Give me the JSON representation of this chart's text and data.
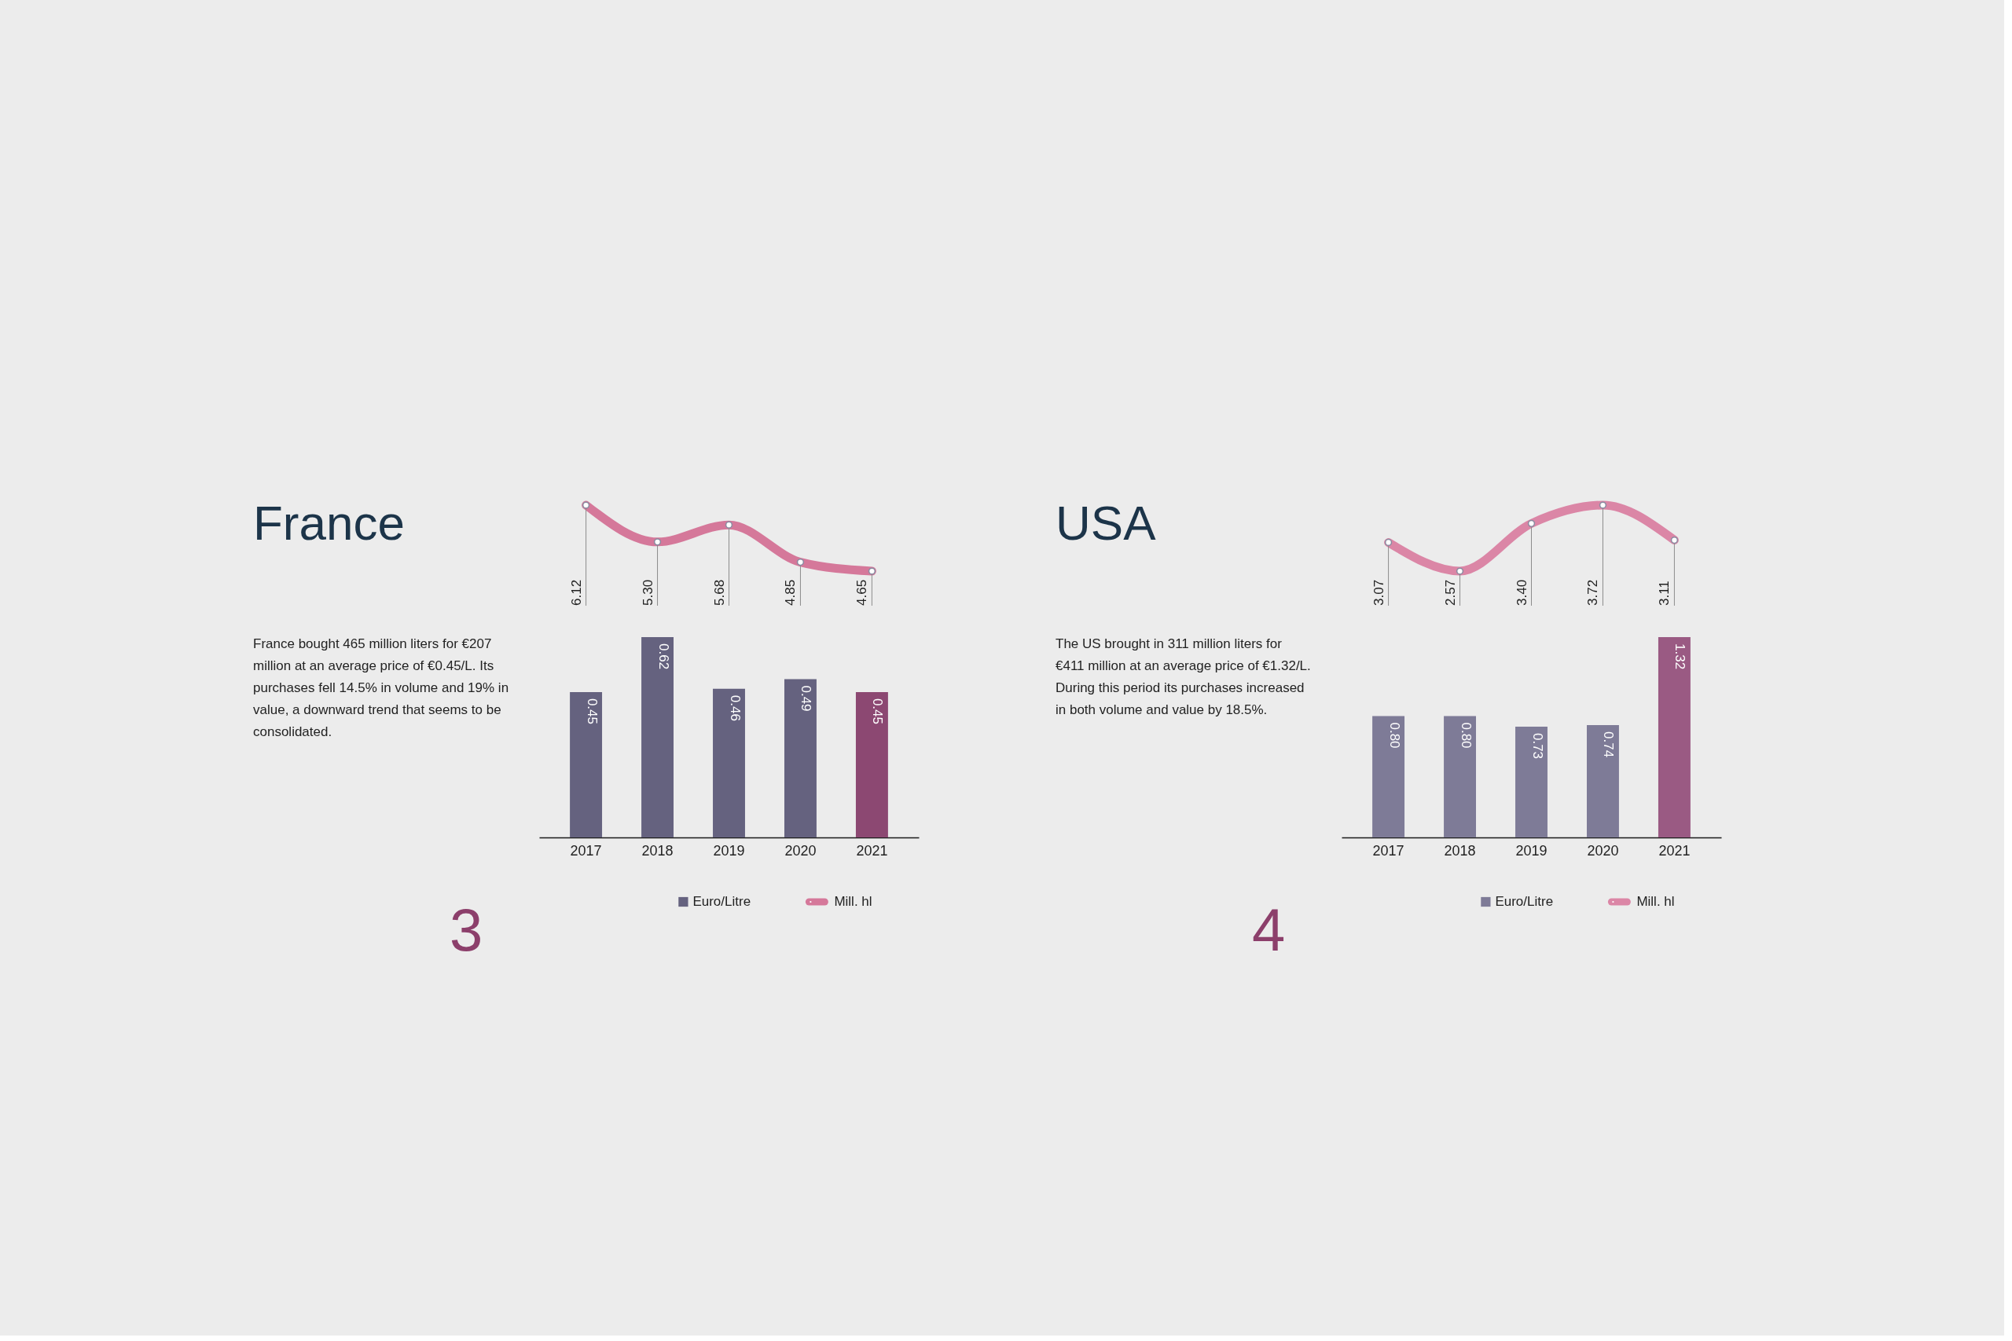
{
  "chart_data": [
    {
      "type": "line",
      "title": "France",
      "annotations": [
        "France bought 465 million liters for €207 million at an average price of €0.45/L. Its purchases fell 14.5% in volume and 19% in value, a downward trend that seems to be consolidated.",
        "3"
      ],
      "categories": [
        "2017",
        "2018",
        "2019",
        "2020",
        "2021"
      ],
      "series": [
        {
          "name": "Mill. hl",
          "color": "#d5789a",
          "values": [
            6.12,
            5.3,
            5.68,
            4.85,
            4.65
          ],
          "value_labels": [
            "6.12",
            "5.30",
            "5.68",
            "4.85",
            "4.65"
          ]
        }
      ],
      "marker": "circle",
      "grid": "x",
      "legend": "bottom right",
      "tick_labels": false
    },
    {
      "type": "bar",
      "categories": [
        "2017",
        "2018",
        "2019",
        "2020",
        "2021"
      ],
      "series": [
        {
          "name": "Euro/Litre",
          "color": "#65627f",
          "colors": [
            "#65627f",
            "#65627f",
            "#65627f",
            "#65627f",
            "#8c4872"
          ],
          "values": [
            0.45,
            0.62,
            0.46,
            0.49,
            0.45
          ],
          "value_labels": [
            "0.45",
            "0.62",
            "0.46",
            "0.49",
            "0.45"
          ]
        }
      ],
      "legend": "bottom right",
      "tick_labels": "x"
    },
    {
      "type": "line",
      "title": "USA",
      "annotations": [
        "The US brought in 311 million liters for €411 million at an average price of €1.32/L. During this period its purchases increased in both volume and value by 18.5%.",
        "4"
      ],
      "categories": [
        "2017",
        "2018",
        "2019",
        "2020",
        "2021"
      ],
      "series": [
        {
          "name": "Mill. hl",
          "color": "#db86a6",
          "values": [
            3.07,
            2.57,
            3.4,
            3.72,
            3.11
          ],
          "value_labels": [
            "3.07",
            "2.57",
            "3.40",
            "3.72",
            "3.11"
          ]
        }
      ],
      "marker": "circle",
      "grid": "x",
      "legend": "bottom right",
      "tick_labels": false
    },
    {
      "type": "bar",
      "categories": [
        "2017",
        "2018",
        "2019",
        "2020",
        "2021"
      ],
      "series": [
        {
          "name": "Euro/Litre",
          "color": "#7e7b97",
          "colors": [
            "#7e7b97",
            "#7e7b97",
            "#7e7b97",
            "#7e7b97",
            "#9a5a83"
          ],
          "values": [
            0.8,
            0.8,
            0.73,
            0.74,
            1.32
          ],
          "value_labels": [
            "0.80",
            "0.80",
            "0.73",
            "0.74",
            "1.32"
          ]
        }
      ],
      "legend": "bottom right",
      "tick_labels": "x"
    }
  ]
}
